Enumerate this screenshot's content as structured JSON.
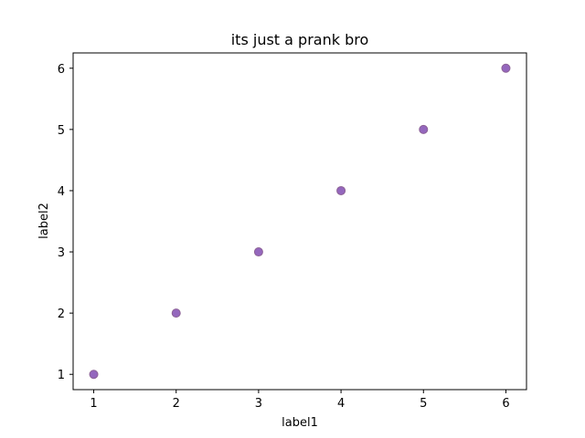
{
  "chart_data": {
    "type": "scatter",
    "title": "its just a prank bro",
    "xlabel": "label1",
    "ylabel": "label2",
    "x": [
      1,
      2,
      3,
      4,
      5,
      6
    ],
    "y": [
      1,
      2,
      3,
      4,
      5,
      6
    ],
    "xlim": [
      0.75,
      6.25
    ],
    "ylim": [
      0.75,
      6.25
    ],
    "xticks": [
      "1",
      "2",
      "3",
      "4",
      "5",
      "6"
    ],
    "yticks": [
      "1",
      "2",
      "3",
      "4",
      "5",
      "6"
    ],
    "grid": false,
    "legend": "none",
    "marker_color": "#9467bd",
    "marker_edge_color": "#8c6196"
  }
}
